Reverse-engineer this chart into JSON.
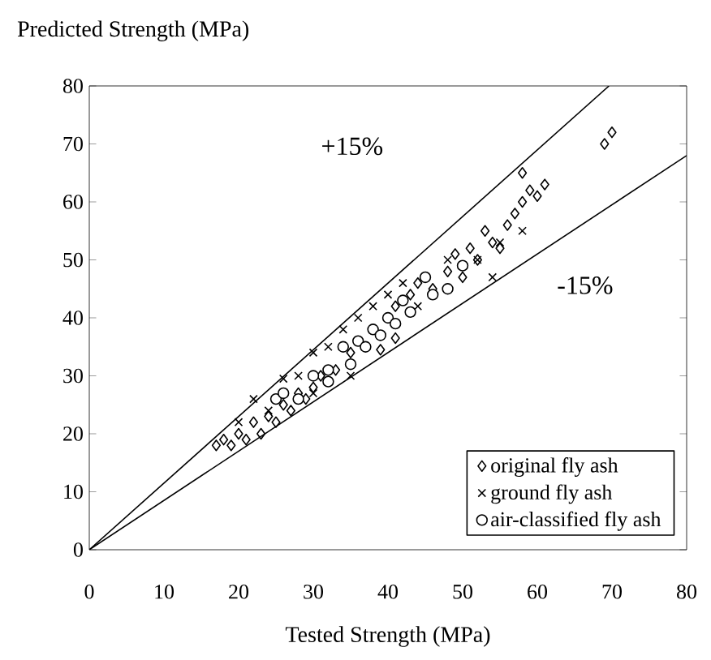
{
  "chart_data": {
    "type": "scatter",
    "xlabel": "Tested Strength  (MPa)",
    "ylabel": "Predicted Strength  (MPa)",
    "xlim": [
      0,
      80
    ],
    "ylim": [
      0,
      80
    ],
    "xticks": [
      0,
      10,
      20,
      30,
      40,
      50,
      60,
      70,
      80
    ],
    "yticks": [
      0,
      10,
      20,
      30,
      40,
      50,
      60,
      70,
      80
    ],
    "grid": false,
    "legend": "bottom right",
    "annotations": [
      "+15%",
      "-15%"
    ],
    "series": [
      {
        "type": "line",
        "color": "#000000",
        "marker": "none",
        "line_style": "solid",
        "x": [
          0,
          69.6
        ],
        "values": [
          0,
          80
        ]
      },
      {
        "type": "line",
        "color": "#000000",
        "marker": "none",
        "line_style": "solid",
        "x": [
          0,
          80
        ],
        "values": [
          0,
          68
        ]
      },
      {
        "name": "original fly ash",
        "color": "#000000",
        "marker": "diamond",
        "x": [
          17,
          18,
          19,
          20,
          21,
          22,
          23,
          24,
          25,
          26,
          27,
          28,
          29,
          30,
          31,
          33,
          35,
          39,
          41,
          41,
          43,
          44,
          46,
          48,
          49,
          50,
          51,
          52,
          53,
          54,
          55,
          56,
          57,
          58,
          59,
          60,
          58,
          61,
          69,
          70
        ],
        "values": [
          18,
          19,
          18,
          20,
          19,
          22,
          20,
          23,
          22,
          25,
          24,
          27,
          26,
          28,
          30,
          31,
          34,
          34.5,
          36.5,
          42,
          44,
          46,
          45,
          48,
          51,
          47,
          52,
          50,
          55,
          53,
          52,
          56,
          58,
          60,
          62,
          61,
          65,
          63,
          70,
          72
        ]
      },
      {
        "name": "ground fly ash",
        "color": "#000000",
        "marker": "cross",
        "x": [
          20,
          22,
          24,
          26,
          28,
          30,
          32,
          34,
          36,
          38,
          40,
          42,
          44,
          48,
          52,
          54,
          55,
          58,
          35,
          30
        ],
        "values": [
          22,
          26,
          24,
          29.5,
          30,
          34,
          35,
          38,
          40,
          42,
          44,
          46,
          42,
          50,
          50,
          47,
          53,
          55,
          30,
          27
        ]
      },
      {
        "name": "air-classified fly ash",
        "color": "#000000",
        "marker": "circle",
        "x": [
          25,
          26,
          28,
          30,
          32,
          34,
          35,
          36,
          37,
          38,
          39,
          40,
          41,
          42,
          43,
          45,
          46,
          48,
          50,
          32
        ],
        "values": [
          26,
          27,
          26,
          30,
          31,
          35,
          32,
          36,
          35,
          38,
          37,
          40,
          39,
          43,
          41,
          47,
          44,
          45,
          49,
          29
        ]
      }
    ]
  }
}
